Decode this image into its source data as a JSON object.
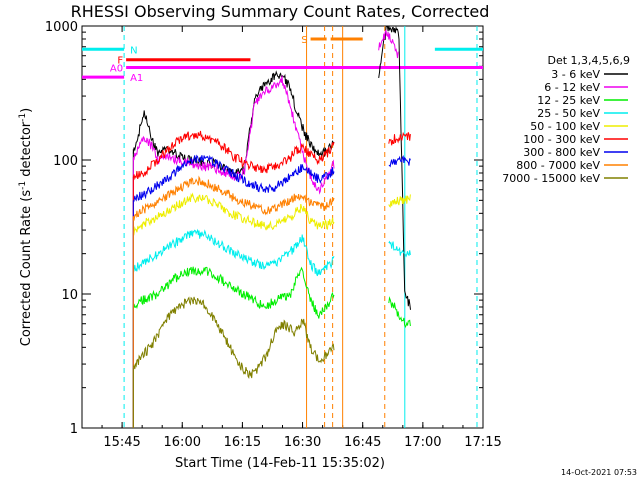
{
  "chart_data": {
    "type": "line",
    "title": "RHESSI Observing Summary Count Rates, Corrected",
    "xlabel": "Start Time (14-Feb-11 15:35:02)",
    "ylabel": "Corrected Count Rate (s",
    "ylabel_sup": "-1",
    "ylabel_tail": " detector",
    "ylabel_close": ")",
    "yscale": "log",
    "ylim": [
      1,
      1000
    ],
    "xlim_minutes": [
      0,
      100
    ],
    "x_ticks": [
      {
        "label": "15:45",
        "minute": 10
      },
      {
        "label": "16:00",
        "minute": 25
      },
      {
        "label": "16:15",
        "minute": 40
      },
      {
        "label": "16:30",
        "minute": 55
      },
      {
        "label": "16:45",
        "minute": 70
      },
      {
        "label": "17:00",
        "minute": 85
      },
      {
        "label": "17:15",
        "minute": 100
      }
    ],
    "y_ticks": [
      {
        "label": "1",
        "value": 1
      },
      {
        "label": "10",
        "value": 10
      },
      {
        "label": "100",
        "value": 100
      },
      {
        "label": "1000",
        "value": 1000
      }
    ],
    "legend_title": "Det 1,3,4,5,6,9",
    "legend_position": "right",
    "series": [
      {
        "name": "3 - 6 keV",
        "color": "#000000",
        "x": [
          12.8,
          14,
          15.5,
          17.5,
          19,
          21,
          24,
          27,
          30,
          33,
          36,
          38,
          40.5,
          43,
          46,
          50,
          52,
          54,
          55.5,
          57,
          59,
          61,
          63,
          74,
          76,
          79,
          80.5,
          82
        ],
        "y": [
          120,
          150,
          230,
          140,
          110,
          120,
          110,
          100,
          95,
          95,
          85,
          80,
          85,
          290,
          380,
          450,
          330,
          210,
          160,
          130,
          110,
          115,
          135,
          440,
          1000,
          900,
          10,
          8
        ]
      },
      {
        "name": "6 - 12 keV",
        "color": "#ee00ee",
        "x": [
          12.8,
          14,
          15.5,
          17.5,
          19,
          21,
          24,
          27,
          30,
          33,
          36,
          38,
          40.5,
          43,
          46,
          50,
          52,
          54,
          55.5,
          57,
          59,
          61,
          63,
          74,
          76,
          79
        ],
        "y": [
          105,
          120,
          150,
          125,
          100,
          105,
          100,
          95,
          90,
          88,
          80,
          75,
          80,
          260,
          330,
          400,
          250,
          150,
          100,
          75,
          60,
          75,
          95,
          700,
          900,
          600
        ]
      },
      {
        "name": "12 - 25 keV",
        "color": "#00ee00",
        "x": [
          12.8,
          15,
          19,
          23,
          27,
          30,
          33,
          36,
          38,
          40.5,
          43,
          46,
          48,
          52,
          53,
          55,
          57,
          59,
          61,
          63,
          76.5,
          78,
          79,
          80.5,
          82
        ],
        "y": [
          8,
          9,
          10,
          13,
          15,
          15,
          14,
          12,
          11,
          10,
          9,
          8,
          9,
          10,
          12,
          15,
          9,
          7,
          8,
          10,
          9,
          8,
          7,
          6,
          6
        ]
      },
      {
        "name": "25 - 50 keV",
        "color": "#00eeee",
        "x": [
          12.8,
          15,
          19,
          23,
          27,
          30,
          33,
          36,
          38,
          40.5,
          43,
          46,
          48,
          52,
          53,
          55,
          57,
          59,
          61,
          63,
          76.5,
          78,
          80,
          82
        ],
        "y": [
          15,
          17,
          20,
          24,
          28,
          28,
          25,
          22,
          20,
          19,
          17,
          16,
          17,
          21,
          22,
          26,
          17,
          14,
          16,
          18,
          25,
          22,
          20,
          21
        ]
      },
      {
        "name": "50 - 100 keV",
        "color": "#eeee00",
        "x": [
          12.8,
          15,
          19,
          23,
          27,
          30,
          33,
          36,
          38,
          40.5,
          43,
          46,
          48,
          52,
          53,
          55,
          57,
          59,
          61,
          63,
          76.5,
          78,
          80,
          82
        ],
        "y": [
          30,
          33,
          38,
          45,
          52,
          53,
          48,
          42,
          39,
          36,
          34,
          32,
          33,
          38,
          40,
          45,
          35,
          32,
          33,
          35,
          48,
          50,
          50,
          52
        ]
      },
      {
        "name": "100 - 300 keV",
        "color": "#ff0000",
        "x": [
          12.8,
          15,
          19,
          23,
          27,
          30,
          33,
          36,
          38,
          40.5,
          43,
          46,
          48,
          52,
          53,
          55,
          57,
          59,
          61,
          63,
          76.5,
          78,
          80,
          82
        ],
        "y": [
          75,
          80,
          100,
          135,
          155,
          155,
          140,
          120,
          105,
          95,
          88,
          86,
          88,
          105,
          115,
          125,
          110,
          100,
          110,
          130,
          135,
          145,
          150,
          150
        ]
      },
      {
        "name": "300 - 800 keV",
        "color": "#0000ee",
        "x": [
          12.8,
          15,
          19,
          23,
          27,
          30,
          33,
          36,
          38,
          40.5,
          43,
          46,
          48,
          52,
          53,
          55,
          57,
          59,
          61,
          63,
          76.5,
          78,
          80,
          82
        ],
        "y": [
          50,
          55,
          65,
          80,
          98,
          105,
          95,
          85,
          78,
          70,
          64,
          60,
          62,
          75,
          80,
          88,
          80,
          72,
          75,
          85,
          92,
          95,
          100,
          98
        ]
      },
      {
        "name": "800 - 7000 keV",
        "color": "#ff8000",
        "x": [
          12.8,
          15,
          19,
          23,
          27,
          30,
          33,
          36,
          38,
          40.5,
          43,
          46,
          48,
          52,
          53,
          55,
          57,
          59,
          61,
          63
        ],
        "y": [
          38,
          42,
          48,
          58,
          68,
          70,
          63,
          57,
          52,
          48,
          45,
          42,
          43,
          50,
          52,
          55,
          48,
          45,
          46,
          50
        ]
      },
      {
        "name": "7000 - 15000 keV",
        "color": "#808000",
        "x": [
          12.8,
          15,
          17,
          19,
          21,
          24,
          27,
          30,
          33,
          36,
          38,
          40,
          42,
          44,
          46,
          48,
          50,
          52,
          53,
          55,
          57,
          59,
          61,
          63
        ],
        "y": [
          2.8,
          3.5,
          4,
          5,
          6.5,
          8,
          9,
          8.5,
          6.5,
          4.5,
          3.5,
          2.8,
          2.5,
          2.8,
          3.5,
          5,
          6,
          5.5,
          5,
          6.5,
          4,
          3.2,
          3.5,
          4
        ]
      }
    ],
    "flag_bars": [
      {
        "label": "N",
        "color": "#00eeee",
        "segments": [
          [
            0,
            10.5
          ],
          [
            88,
            100
          ]
        ],
        "level": 670
      },
      {
        "label": "F",
        "color": "#ff0000",
        "segments": [
          [
            11,
            42
          ]
        ],
        "level": 560
      },
      {
        "label": "A0",
        "color": "#ff00ff",
        "segments": [
          [
            11,
            100
          ]
        ],
        "level": 490
      },
      {
        "label": "A1",
        "color": "#ff00ff",
        "segments": [
          [
            0,
            10.5
          ]
        ],
        "level": 415
      },
      {
        "label": "S",
        "color": "#ff8000",
        "segments": [
          [
            57,
            61
          ],
          [
            62,
            70
          ]
        ],
        "level": 800
      }
    ],
    "vertical_markers": [
      {
        "minute": 10.5,
        "color": "#00eeee",
        "style": "dashed"
      },
      {
        "minute": 56,
        "color": "#ff8000",
        "style": "solid"
      },
      {
        "minute": 60.5,
        "color": "#ff8000",
        "style": "dashed"
      },
      {
        "minute": 62.5,
        "color": "#ff8000",
        "style": "dashed"
      },
      {
        "minute": 65,
        "color": "#ff8000",
        "style": "solid"
      },
      {
        "minute": 75.5,
        "color": "#ff8000",
        "style": "dashed"
      },
      {
        "minute": 80.5,
        "color": "#00eeee",
        "style": "solid"
      },
      {
        "minute": 98.5,
        "color": "#00eeee",
        "style": "dashed"
      }
    ],
    "timestamp": "14-Oct-2021 07:53"
  }
}
